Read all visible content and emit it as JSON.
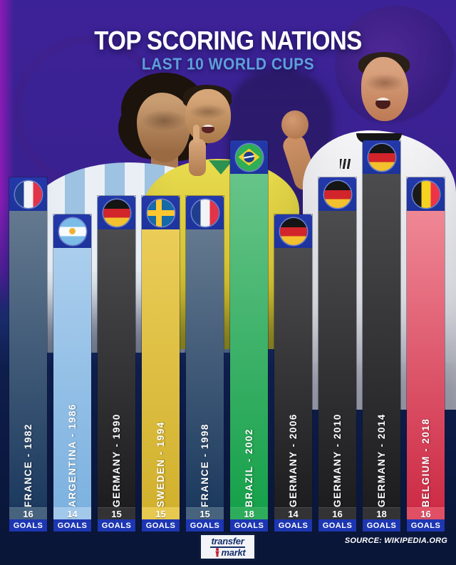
{
  "header": {
    "title": "TOP SCORING NATIONS",
    "subtitle": "LAST 10 WORLD CUPS"
  },
  "chart_data": {
    "type": "bar",
    "title": "TOP SCORING NATIONS",
    "subtitle": "LAST 10 WORLD CUPS",
    "orientation": "vertical",
    "unit_label": "GOALS",
    "value_axis": "goals scored by top scoring nation per tournament",
    "bars": [
      {
        "label": "FRANCE - 1982",
        "nation": "France",
        "year": 1982,
        "goals": 16,
        "flag": "fr",
        "color_top": "#64798f",
        "color_bottom": "#1c3a5f",
        "num_bg": "#47637e"
      },
      {
        "label": "ARGENTINA - 1986",
        "nation": "Argentina",
        "year": 1986,
        "goals": 14,
        "flag": "ar",
        "color_top": "#abceed",
        "color_bottom": "#7db2e0",
        "num_bg": "#a3c9ea"
      },
      {
        "label": "GERMANY - 1990",
        "nation": "Germany",
        "year": 1990,
        "goals": 15,
        "flag": "de",
        "color_top": "#4c4c4e",
        "color_bottom": "#1d1d1f",
        "num_bg": "#333336"
      },
      {
        "label": "SWEDEN - 1994",
        "nation": "Sweden",
        "year": 1994,
        "goals": 15,
        "flag": "se",
        "color_top": "#eacd58",
        "color_bottom": "#d2b12e",
        "num_bg": "#e8c94f"
      },
      {
        "label": "FRANCE - 1998",
        "nation": "France",
        "year": 1998,
        "goals": 15,
        "flag": "fr",
        "color_top": "#64798f",
        "color_bottom": "#1c3a5f",
        "num_bg": "#47637e"
      },
      {
        "label": "BRAZIL - 2002",
        "nation": "Brazil",
        "year": 2002,
        "goals": 18,
        "flag": "br",
        "color_top": "#67c489",
        "color_bottom": "#17a14b",
        "num_bg": "#2dad5c"
      },
      {
        "label": "GERMANY - 2006",
        "nation": "Germany",
        "year": 2006,
        "goals": 14,
        "flag": "de",
        "color_top": "#4c4c4e",
        "color_bottom": "#1d1d1f",
        "num_bg": "#333336"
      },
      {
        "label": "GERMANY - 2010",
        "nation": "Germany",
        "year": 2010,
        "goals": 16,
        "flag": "de",
        "color_top": "#4c4c4e",
        "color_bottom": "#1d1d1f",
        "num_bg": "#333336"
      },
      {
        "label": "GERMANY - 2014",
        "nation": "Germany",
        "year": 2014,
        "goals": 18,
        "flag": "de",
        "color_top": "#4c4c4e",
        "color_bottom": "#1d1d1f",
        "num_bg": "#333336"
      },
      {
        "label": "BELGIUM - 2018",
        "nation": "Belgium",
        "year": 2018,
        "goals": 16,
        "flag": "be",
        "color_top": "#ef8795",
        "color_bottom": "#cd2c46",
        "num_bg": "#e04f63"
      }
    ]
  },
  "footer": {
    "logo_line1": "transfer",
    "logo_line2": "markt",
    "source": "SOURCE: WIKIPEDIA.ORG"
  },
  "colors": {
    "header_blue": "#1d339c",
    "goals_strip_blue": "#1d36b2",
    "subtitle_blue": "#5e9edc",
    "background_purple": "#3a2190",
    "background_navy": "#0c1c44"
  }
}
